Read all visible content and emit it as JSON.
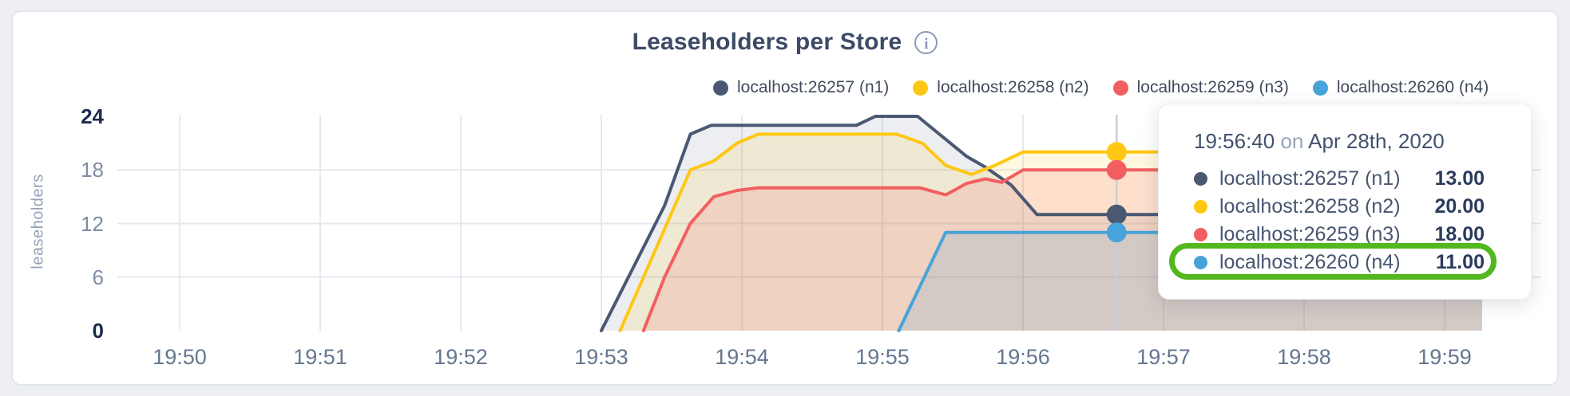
{
  "header": {
    "title": "Leaseholders per Store",
    "info_icon": "i"
  },
  "tooltip": {
    "time": "19:56:40",
    "conjunction": "on",
    "date": "Apr 28th, 2020",
    "rows": [
      {
        "label": "localhost:26257 (n1)",
        "value": "13.00",
        "color": "#4a5872"
      },
      {
        "label": "localhost:26258 (n2)",
        "value": "20.00",
        "color": "#ffc713"
      },
      {
        "label": "localhost:26259 (n3)",
        "value": "18.00",
        "color": "#f25f61"
      },
      {
        "label": "localhost:26260 (n4)",
        "value": "11.00",
        "color": "#47a3d9"
      }
    ],
    "highlighted_row": 3,
    "highlight_color": "#53b71e"
  },
  "chart_data": {
    "type": "area",
    "title": "Leaseholders per Store",
    "ylabel": "leaseholders",
    "ylim": [
      0,
      24
    ],
    "y_ticks": [
      0,
      6,
      12,
      18,
      24
    ],
    "x_ticks": [
      "19:50",
      "19:51",
      "19:52",
      "19:53",
      "19:54",
      "19:55",
      "19:56",
      "19:57",
      "19:58",
      "19:59"
    ],
    "grid": true,
    "legend_position": "top-right",
    "x_note": "points are [seconds after 19:50:00, leaseholders]",
    "series": [
      {
        "name": "localhost:26257 (n1)",
        "color": "#4a5872",
        "points": [
          [
            180,
            0
          ],
          [
            207,
            14
          ],
          [
            218,
            22
          ],
          [
            227,
            23
          ],
          [
            289,
            23
          ],
          [
            297,
            24
          ],
          [
            315,
            24
          ],
          [
            336,
            19.5
          ],
          [
            344,
            18.3
          ],
          [
            355,
            16.3
          ],
          [
            366,
            13
          ],
          [
            556,
            13
          ]
        ]
      },
      {
        "name": "localhost:26258 (n2)",
        "color": "#ffc713",
        "points": [
          [
            188,
            0
          ],
          [
            218,
            18
          ],
          [
            228,
            19
          ],
          [
            238,
            21
          ],
          [
            247,
            22
          ],
          [
            306,
            22
          ],
          [
            317,
            21
          ],
          [
            327,
            18.5
          ],
          [
            338,
            17.5
          ],
          [
            348,
            18.5
          ],
          [
            360,
            20
          ],
          [
            556,
            20
          ]
        ]
      },
      {
        "name": "localhost:26259 (n3)",
        "color": "#f25f61",
        "points": [
          [
            198,
            0
          ],
          [
            207,
            6
          ],
          [
            218,
            12
          ],
          [
            228,
            15
          ],
          [
            238,
            15.7
          ],
          [
            247,
            16
          ],
          [
            316,
            16
          ],
          [
            327,
            15.2
          ],
          [
            336,
            16.5
          ],
          [
            344,
            17
          ],
          [
            351,
            16.6
          ],
          [
            360,
            18
          ],
          [
            556,
            18
          ]
        ]
      },
      {
        "name": "localhost:26260 (n4)",
        "color": "#47a3d9",
        "points": [
          [
            307,
            0
          ],
          [
            327,
            11
          ],
          [
            556,
            11
          ]
        ]
      }
    ],
    "hover": {
      "t_seconds": 400,
      "time_label": "19:56:40",
      "values": [
        13,
        20,
        18,
        11
      ]
    }
  }
}
